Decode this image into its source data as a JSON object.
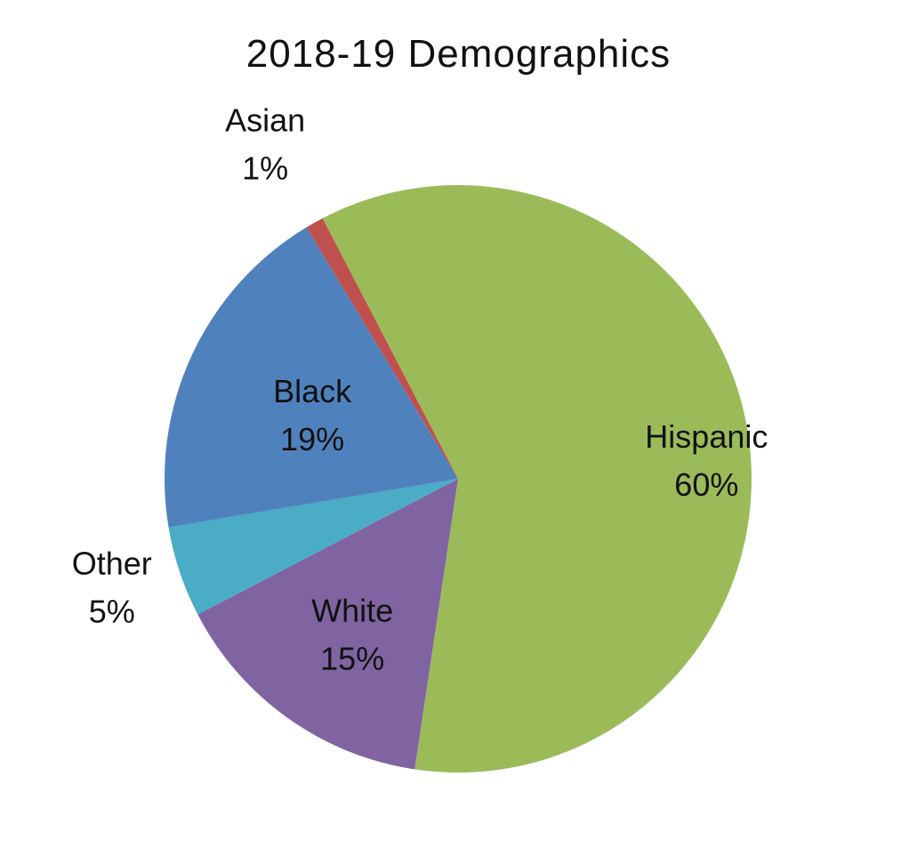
{
  "chart_data": {
    "type": "pie",
    "title": "2018-19 Demographics",
    "slices": [
      {
        "name": "Hispanic",
        "value": 60,
        "label": "60%",
        "color": "#9BBB59"
      },
      {
        "name": "White",
        "value": 15,
        "label": "15%",
        "color": "#8064A2"
      },
      {
        "name": "Other",
        "value": 5,
        "label": "5%",
        "color": "#4BACC6"
      },
      {
        "name": "Black",
        "value": 19,
        "label": "19%",
        "color": "#4F81BD"
      },
      {
        "name": "Asian",
        "value": 1,
        "label": "1%",
        "color": "#C0504D"
      }
    ],
    "legend": "none",
    "data_labels": "category and percent"
  }
}
